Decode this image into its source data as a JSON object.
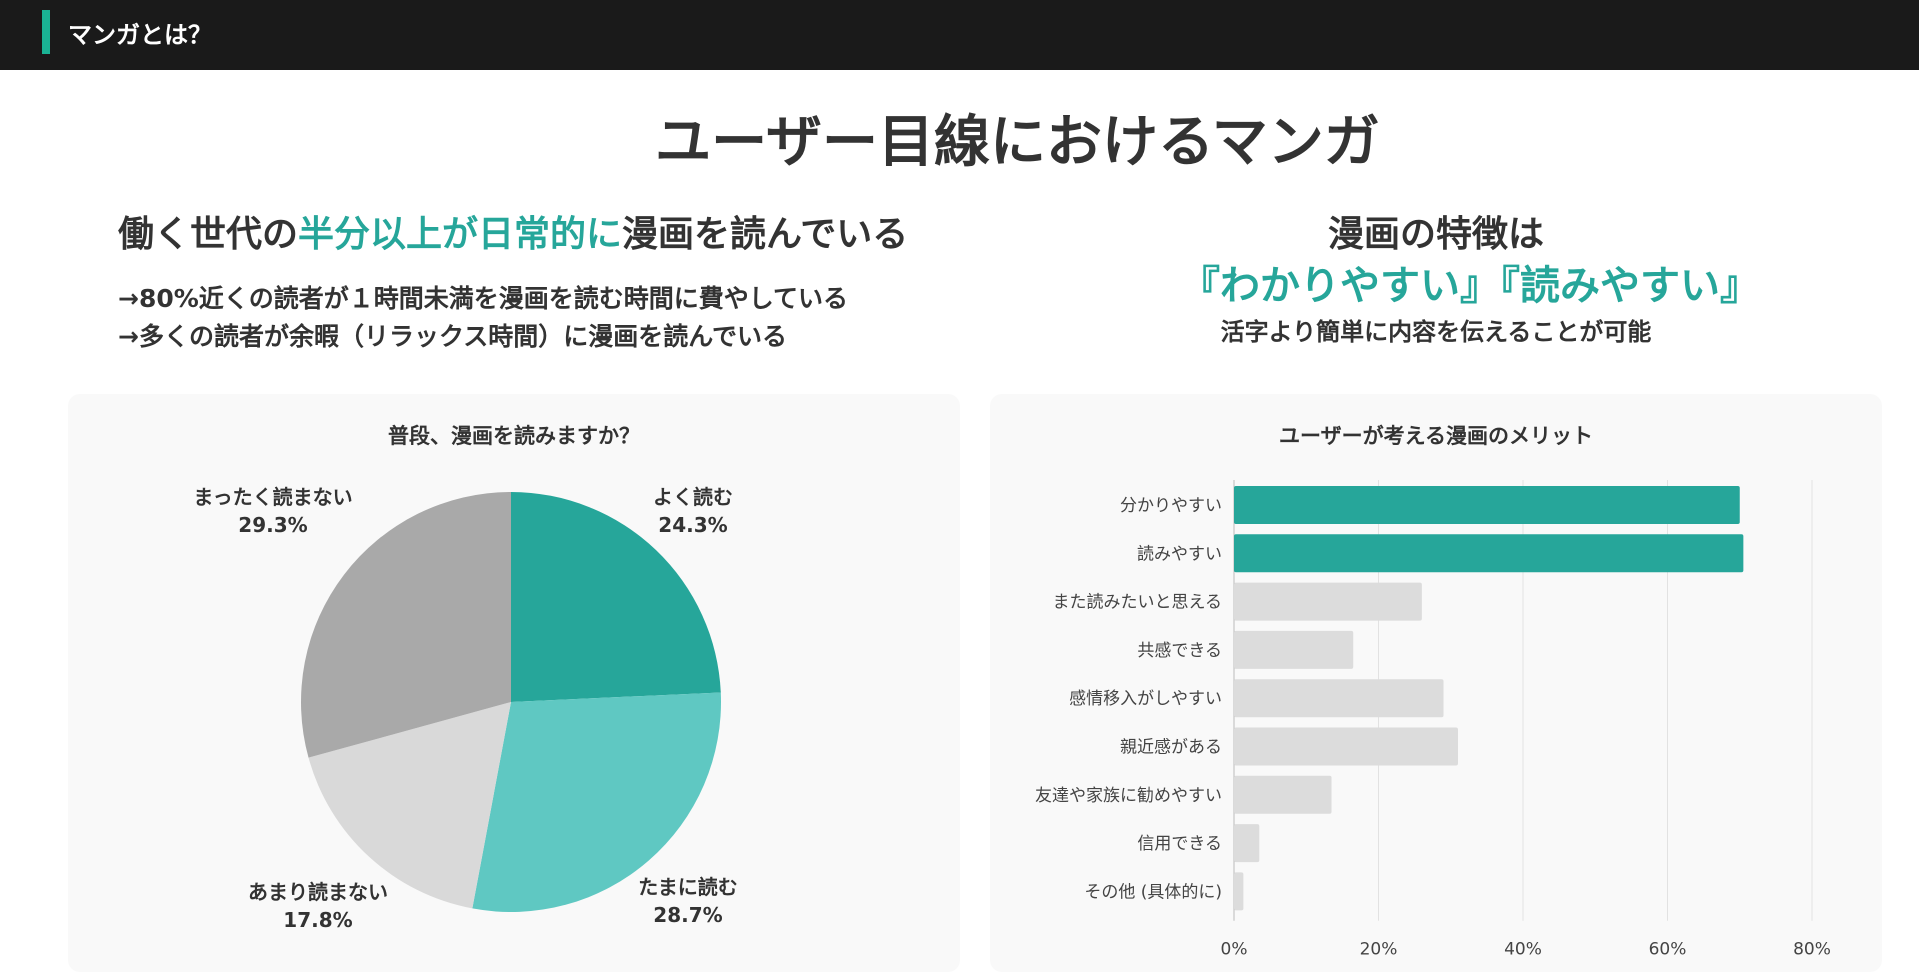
{
  "header": {
    "section_label": "マンガとは？"
  },
  "page_title": "ユーザー目線におけるマンガ",
  "left": {
    "headline_pre": "働く世代の",
    "headline_highlight": "半分以上が日常的に",
    "headline_post": "漫画を読んでいる",
    "bullet1": "→80%近くの読者が１時間未満を漫画を読む時間に費やしている",
    "bullet2": "→多くの読者が余暇（リラックス時間）に漫画を読んでいる"
  },
  "right": {
    "headline": "漫画の特徴は",
    "highlight": "『わかりやすい』『読みやすい』",
    "sub": "活字より簡単に内容を伝えることが可能"
  },
  "colors": {
    "accent": "#26a69a",
    "accent_light": "#5fc8c2",
    "gray_dark": "#a9a9a9",
    "gray_light": "#d9d9d9",
    "bar_gray": "#dcdcdc"
  },
  "chart_data": [
    {
      "type": "pie",
      "title": "普段、漫画を読みますか？",
      "slices": [
        {
          "label": "よく読む",
          "value": 24.3,
          "display": "24.3%",
          "color": "#26a69a"
        },
        {
          "label": "たまに読む",
          "value": 28.7,
          "display": "28.7%",
          "color": "#5fc8c2"
        },
        {
          "label": "あまり読まない",
          "value": 17.8,
          "display": "17.8%",
          "color": "#d9d9d9"
        },
        {
          "label": "まったく読まない",
          "value": 29.3,
          "display": "29.3%",
          "color": "#a9a9a9"
        }
      ]
    },
    {
      "type": "bar",
      "orientation": "horizontal",
      "title": "ユーザーが考える漫画のメリット",
      "categories": [
        "分かりやすい",
        "読みやすい",
        "また読みたいと思える",
        "共感できる",
        "感情移入がしやすい",
        "親近感がある",
        "友達や家族に勧めやすい",
        "信用できる",
        "その他 (具体的に)"
      ],
      "values": [
        70,
        70.5,
        26,
        16.5,
        29,
        31,
        13.5,
        3.5,
        1.3
      ],
      "highlight_count": 2,
      "xlim": [
        0,
        80
      ],
      "xticks": [
        0,
        20,
        40,
        60,
        80
      ],
      "xtick_labels": [
        "0%",
        "20%",
        "40%",
        "60%",
        "80%"
      ],
      "grid": true
    }
  ]
}
